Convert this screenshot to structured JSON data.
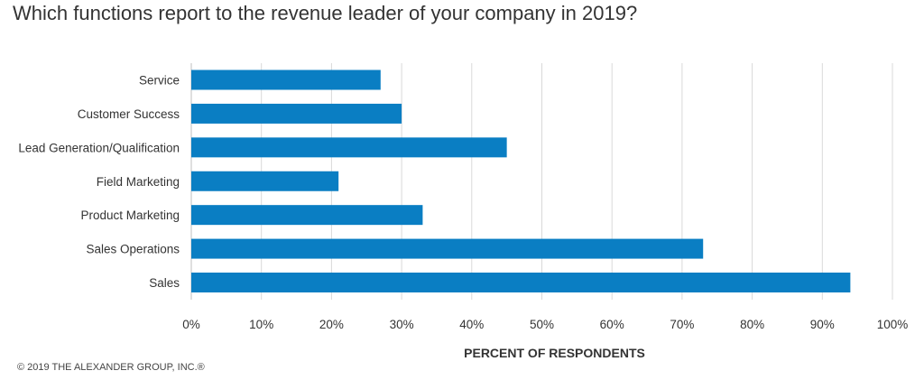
{
  "colors": {
    "bar": "#0a7ec3",
    "grid": "#d9d9d9",
    "axis": "#bfbfbf"
  },
  "copyright": "© 2019 THE ALEXANDER GROUP, INC.®",
  "chart_data": {
    "type": "bar",
    "orientation": "horizontal",
    "title": "Which functions report to the revenue leader of your company in 2019?",
    "xlabel": "PERCENT OF RESPONDENTS",
    "ylabel": "",
    "categories": [
      "Service",
      "Customer Success",
      "Lead Generation/Qualification",
      "Field Marketing",
      "Product Marketing",
      "Sales Operations",
      "Sales"
    ],
    "values": [
      27,
      30,
      45,
      21,
      33,
      73,
      94
    ],
    "xlim": [
      0,
      100
    ],
    "xticks": [
      0,
      10,
      20,
      30,
      40,
      50,
      60,
      70,
      80,
      90,
      100
    ],
    "xtick_labels": [
      "0%",
      "10%",
      "20%",
      "30%",
      "40%",
      "50%",
      "60%",
      "70%",
      "80%",
      "90%",
      "100%"
    ],
    "grid": "vertical",
    "legend": "none"
  }
}
